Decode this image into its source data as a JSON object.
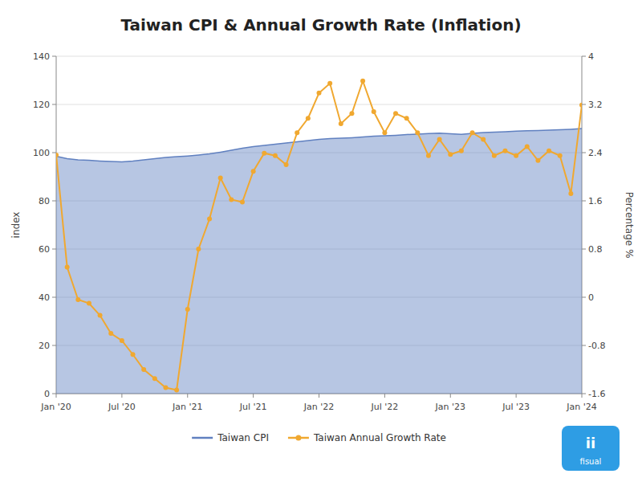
{
  "chart_data": {
    "type": "line",
    "title": "Taiwan CPI & Annual Growth Rate (Inflation)",
    "ylabel": "index",
    "y2label": "Percentage %",
    "categories": [
      "Jan '20",
      null,
      null,
      null,
      null,
      null,
      "Jul '20",
      null,
      null,
      null,
      null,
      null,
      "Jan '21",
      null,
      null,
      null,
      null,
      null,
      "Jul '21",
      null,
      null,
      null,
      null,
      null,
      "Jan '22",
      null,
      null,
      null,
      null,
      null,
      "Jul '22",
      null,
      null,
      null,
      null,
      null,
      "Jan '23",
      null,
      null,
      null,
      null,
      null,
      "Jul '23",
      null,
      null,
      null,
      null,
      null,
      "Jan '24"
    ],
    "series": [
      {
        "name": "Taiwan CPI",
        "type": "area",
        "color": "#6080c0",
        "values": [
          98.5,
          97.5,
          97.0,
          96.8,
          96.5,
          96.3,
          96.2,
          96.5,
          97.0,
          97.5,
          98.0,
          98.3,
          98.6,
          99.0,
          99.5,
          100.2,
          101.0,
          101.8,
          102.5,
          103.0,
          103.5,
          104.0,
          104.5,
          105.0,
          105.5,
          105.8,
          106.0,
          106.2,
          106.5,
          106.8,
          107.0,
          107.2,
          107.5,
          107.7,
          107.9,
          108.1,
          107.8,
          107.6,
          108.0,
          108.3,
          108.5,
          108.7,
          108.9,
          109.1,
          109.2,
          109.3,
          109.5,
          109.7,
          110.0
        ]
      },
      {
        "name": "Taiwan Annual Growth Rate",
        "type": "line",
        "axis": "y2",
        "color": "#f0a830",
        "marker": "circle",
        "values": [
          2.36,
          0.5,
          -0.04,
          -0.1,
          -0.3,
          -0.6,
          -0.72,
          -0.95,
          -1.2,
          -1.35,
          -1.5,
          -1.54,
          -0.2,
          0.8,
          1.3,
          1.98,
          1.62,
          1.58,
          2.09,
          2.39,
          2.35,
          2.2,
          2.73,
          2.97,
          3.39,
          3.55,
          2.88,
          3.05,
          3.59,
          3.08,
          2.73,
          3.05,
          2.97,
          2.73,
          2.35,
          2.62,
          2.37,
          2.43,
          2.73,
          2.62,
          2.35,
          2.43,
          2.35,
          2.5,
          2.27,
          2.43,
          2.35,
          1.72,
          3.19
        ]
      }
    ],
    "ylim": [
      0,
      140
    ],
    "yticks": [
      0,
      20,
      40,
      60,
      80,
      100,
      120,
      140
    ],
    "y2lim": [
      -1.6,
      4.0
    ],
    "y2ticks": [
      -1.6,
      -0.8,
      0,
      0.8,
      1.6,
      2.4,
      3.2,
      4
    ],
    "grid": true,
    "legend": "bottom",
    "annotations": [
      "ii",
      "fisual"
    ]
  }
}
